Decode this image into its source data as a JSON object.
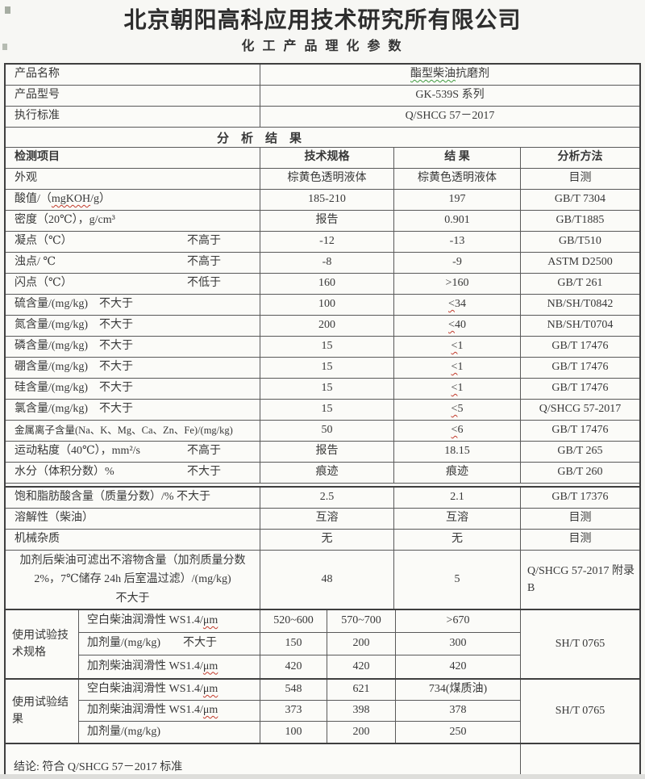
{
  "header": {
    "company": "北京朝阳高科应用技术研究所有限公司",
    "doc_title": "化 工 产 品 理 化 参 数"
  },
  "info": {
    "rows": [
      {
        "label": "产品名称",
        "value_wavy": "酯型柴油",
        "value_post": "抗磨剂"
      },
      {
        "label": "产品型号",
        "value": "GK-539S 系列"
      },
      {
        "label": "执行标准",
        "value": "Q/SHCG 57－2017"
      }
    ]
  },
  "analysis": {
    "section_title": "分　析　结　果",
    "columns": {
      "item": "检测项目",
      "spec": "技术规格",
      "result": "结 果",
      "method": "分析方法"
    },
    "rows": [
      {
        "item": "外观",
        "spec": "棕黄色透明液体",
        "result": "棕黄色透明液体",
        "method": "目测"
      },
      {
        "item_pre": "酸值/（",
        "item_wavy": "mgKOH",
        "item_post": "/g）",
        "spec": "185-210",
        "result": "197",
        "method": "GB/T 7304"
      },
      {
        "item": "密度（20℃），g/cm³",
        "spec": "报告",
        "result": "0.901",
        "method": "GB/T1885"
      },
      {
        "item": "凝点（℃）",
        "cond": "不高于",
        "spec": "-12",
        "result": "-13",
        "method": "GB/T510"
      },
      {
        "item": "浊点/ ℃",
        "cond": "不高于",
        "spec": "-8",
        "result": "-9",
        "method": "ASTM D2500"
      },
      {
        "item": "闪点（℃）",
        "cond": "不低于",
        "spec": "160",
        "result": ">160",
        "method": "GB/T 261"
      },
      {
        "item": "硫含量/(mg/kg)　不大于",
        "spec": "100",
        "result_wavy": "<",
        "result": "34",
        "method": "NB/SH/T0842"
      },
      {
        "item": "氮含量/(mg/kg)　不大于",
        "spec": "200",
        "result_wavy": "<",
        "result": "40",
        "method": "NB/SH/T0704"
      },
      {
        "item": "磷含量/(mg/kg)　不大于",
        "spec": "15",
        "result_wavy": "<",
        "result": "1",
        "method": "GB/T 17476"
      },
      {
        "item": "硼含量/(mg/kg)　不大于",
        "spec": "15",
        "result_wavy": "<",
        "result": "1",
        "method": "GB/T 17476"
      },
      {
        "item": "硅含量/(mg/kg)　不大于",
        "spec": "15",
        "result_wavy": "<",
        "result": "1",
        "method": "GB/T 17476"
      },
      {
        "item": "氯含量/(mg/kg)　不大于",
        "spec": "15",
        "result_wavy": "<",
        "result": "5",
        "method": "Q/SHCG 57-2017"
      },
      {
        "item": "金属离子含量(Na、K、Mg、Ca、Zn、Fe)/(mg/kg)",
        "spec": "50",
        "result_wavy": "<",
        "result": "6",
        "method": "GB/T 17476"
      },
      {
        "item": "运动粘度（40℃），mm²/s",
        "cond": "不高于",
        "spec": "报告",
        "result": "18.15",
        "method": "GB/T 265"
      },
      {
        "item": "水分（体积分数）%",
        "cond": "不大于",
        "spec": "痕迹",
        "result": "痕迹",
        "method": "GB/T 260"
      }
    ],
    "rows2": [
      {
        "item": "饱和脂肪酸含量（质量分数）/% 不大于",
        "spec": "2.5",
        "result": "2.1",
        "method": "GB/T 17376"
      },
      {
        "item": "溶解性（柴油）",
        "spec": "互溶",
        "result": "互溶",
        "method": "目测"
      },
      {
        "item": "机械杂质",
        "spec": "无",
        "result": "无",
        "method": "目测"
      }
    ],
    "filter_row": {
      "item": "加剂后柴油可滤出不溶物含量（加剂质量分数\n2%，7℃储存 24h 后室温过滤）/(mg/kg)\n不大于",
      "spec": "48",
      "result": "5",
      "method": "Q/SHCG 57-2017 附录\nB"
    }
  },
  "usage_spec": {
    "label": "使用试验技术规格",
    "method": "SH/T 0765",
    "rows": [
      {
        "name_pre": "空白柴油润滑性 WS1.4/",
        "name_wavy": "μm",
        "v1": "520~600",
        "v2": "570~700",
        "v3": ">670"
      },
      {
        "name_pre": "加剂量/(mg/kg)　　不大于",
        "v1": "150",
        "v2": "200",
        "v3": "300"
      },
      {
        "name_pre": "加剂柴油润滑性 WS1.4/",
        "name_wavy": "μm",
        "v1": "420",
        "v2": "420",
        "v3": "420"
      }
    ]
  },
  "usage_result": {
    "label": "使用试验结果",
    "method": "SH/T 0765",
    "rows": [
      {
        "name_pre": "空白柴油润滑性 WS1.4/",
        "name_wavy": "μm",
        "v1": "548",
        "v2": "621",
        "v3": "734(煤质油)"
      },
      {
        "name_pre": "加剂柴油润滑性 WS1.4/",
        "name_wavy": "μm",
        "v1": "373",
        "v2": "398",
        "v3": "378"
      },
      {
        "name_pre": "加剂量/(mg/kg)",
        "v1": "100",
        "v2": "200",
        "v3": "250"
      }
    ]
  },
  "conclusion": {
    "text": "结论: 符合 Q/SHCG 57－2017 标准"
  },
  "colors": {
    "border": "#3f3f3f",
    "wavy_red": "#c23a2b",
    "wavy_green": "#3f9b3f"
  }
}
